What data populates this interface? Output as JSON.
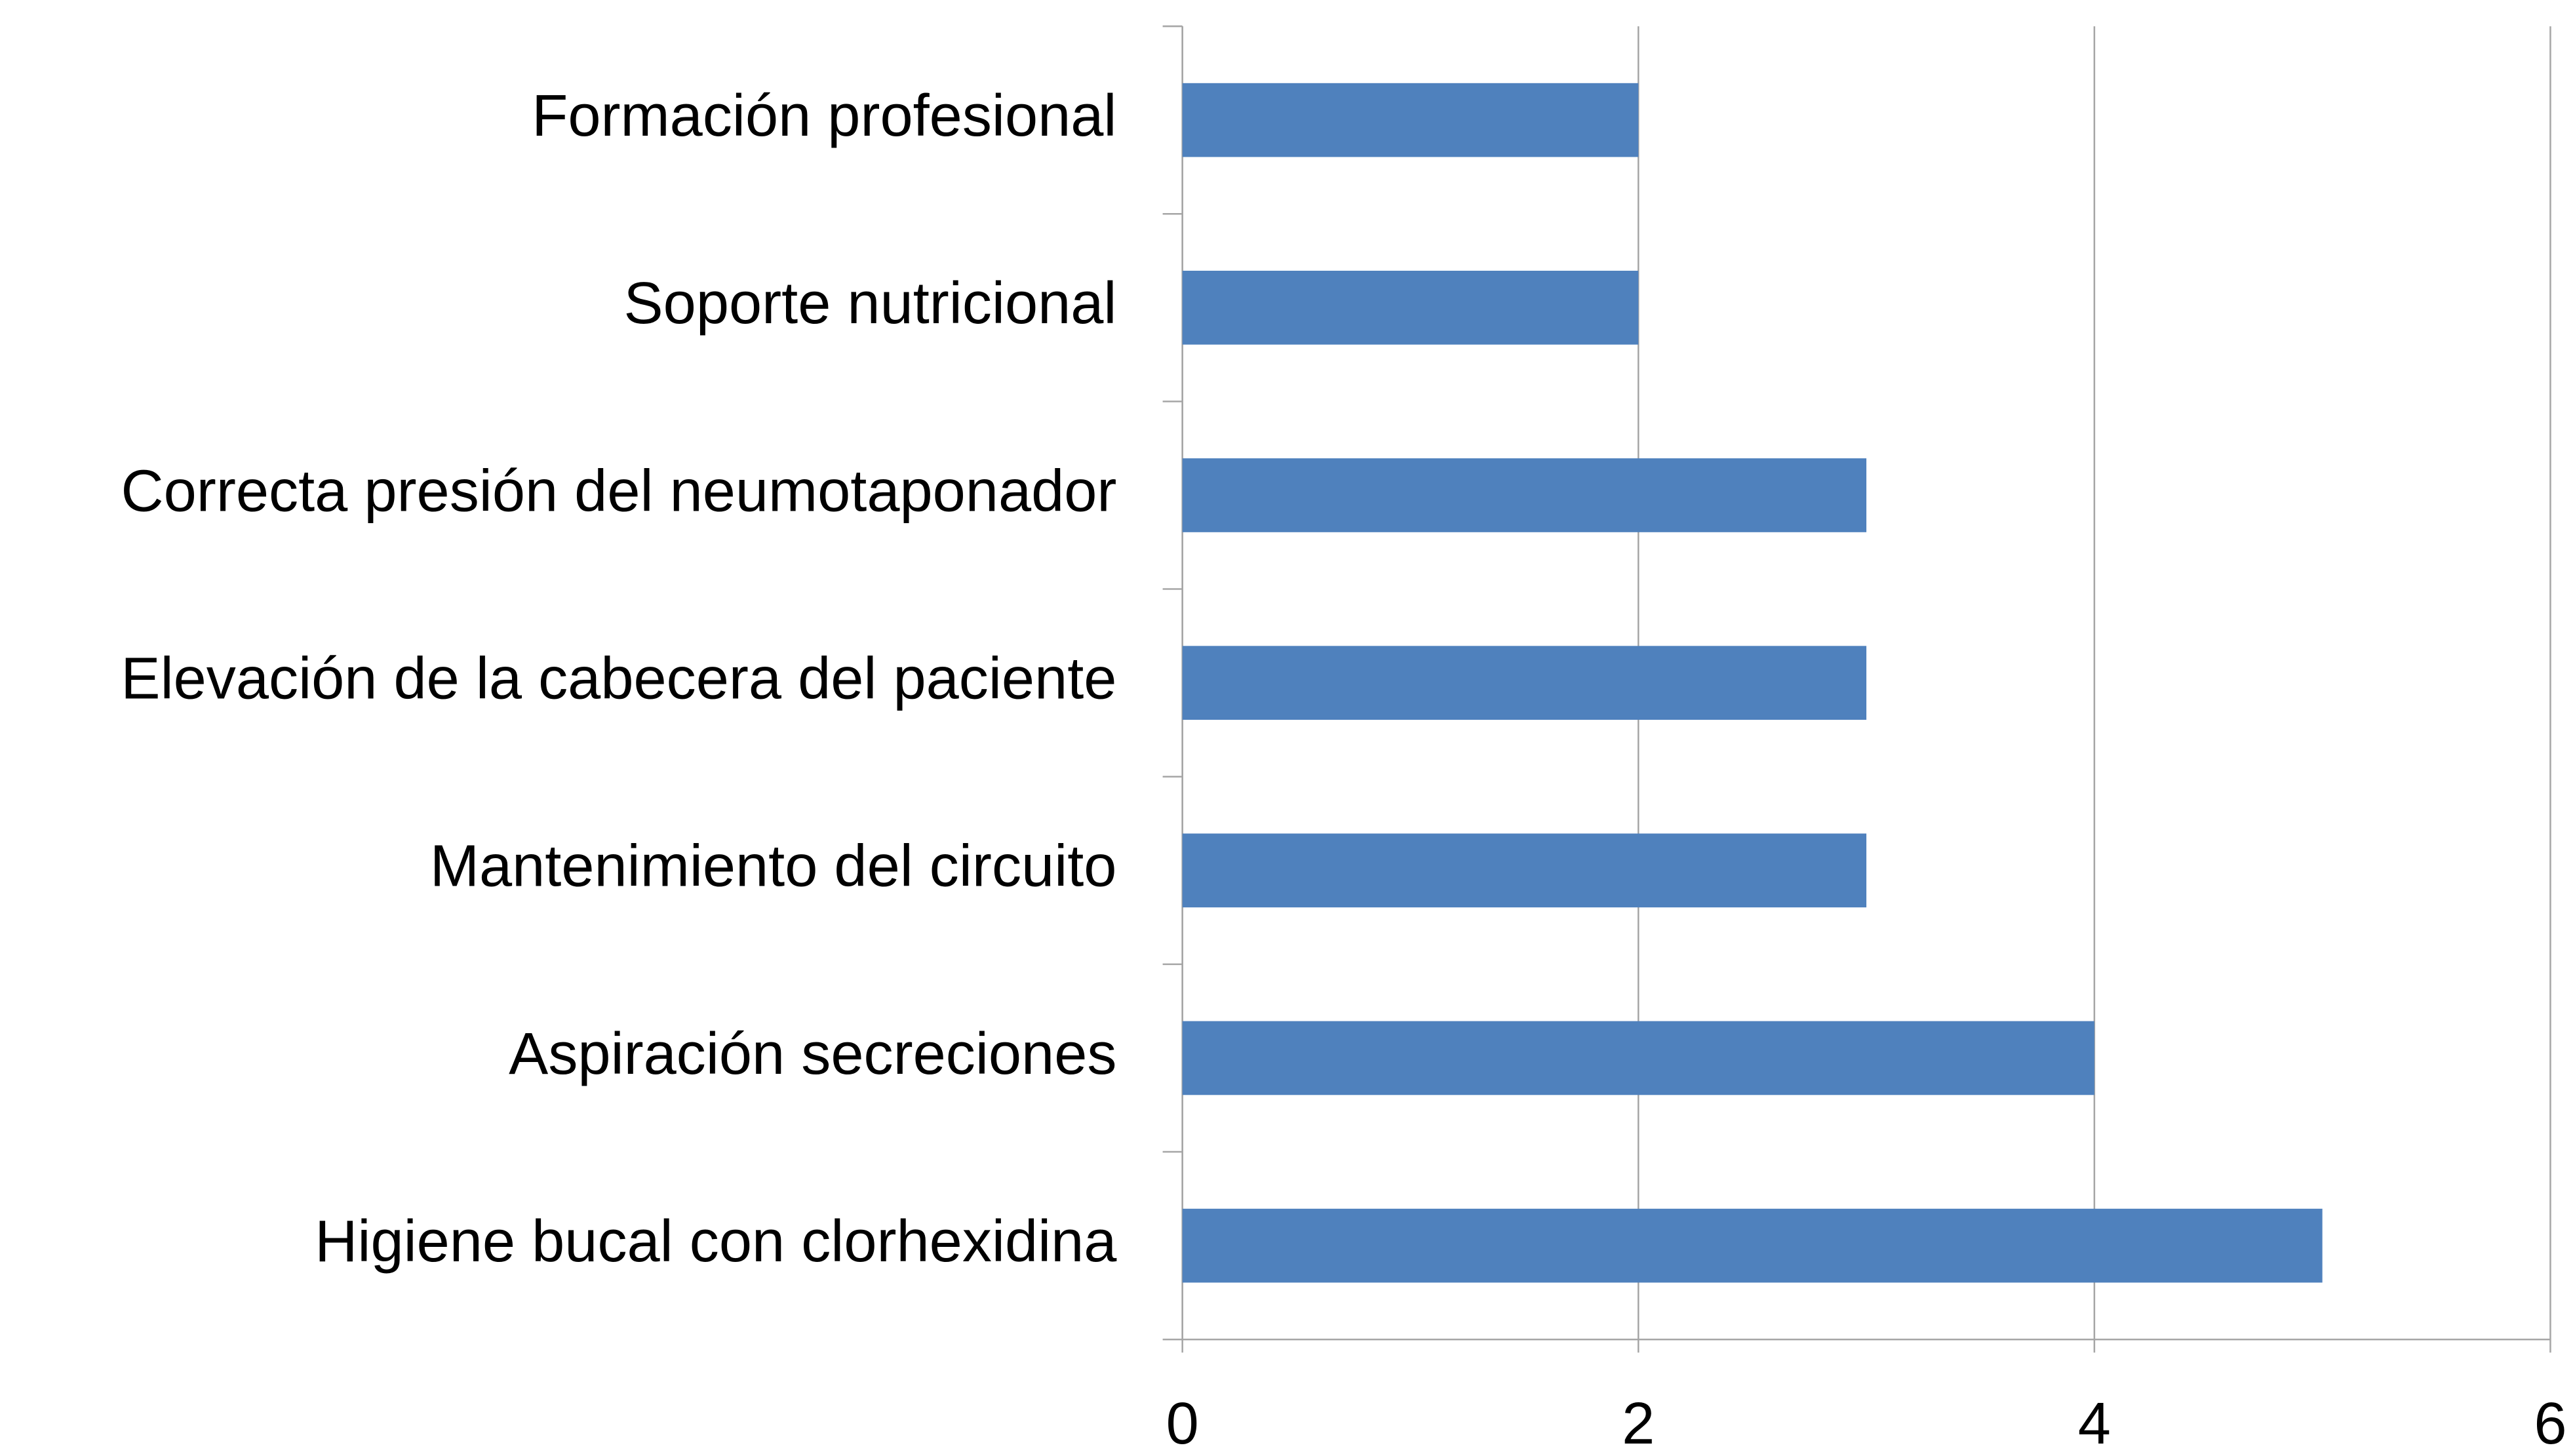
{
  "chart_data": {
    "type": "hbar",
    "categories": [
      "Formación profesional",
      "Soporte nutricional",
      "Correcta presión del neumotaponador",
      "Elevación de la cabecera del paciente",
      "Mantenimiento del circuito",
      "Aspiración secreciones",
      "Higiene bucal con clorhexidina"
    ],
    "values": [
      2,
      2,
      3,
      3,
      3,
      4,
      5
    ],
    "color": "#4f81bd",
    "xlim": [
      0,
      6
    ],
    "xticks": [
      0,
      2,
      4,
      6
    ],
    "grid": true
  }
}
